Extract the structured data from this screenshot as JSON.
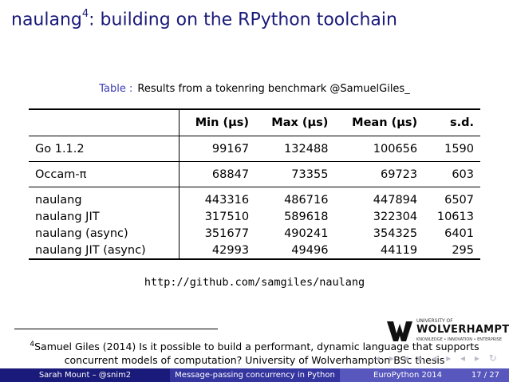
{
  "slide": {
    "title": "naulang",
    "title_sup": "4",
    "title_rest": ": building on the RPython toolchain"
  },
  "table": {
    "caption_label": "Table :",
    "caption_text": "Results from a tokenring benchmark @SamuelGiles_",
    "headers": [
      "Min (μs)",
      "Max (μs)",
      "Mean (μs)",
      "s.d."
    ],
    "rows": [
      {
        "name": "Go 1.1.2",
        "values": [
          "99167",
          "132488",
          "100656",
          "1590"
        ]
      },
      {
        "name": "Occam-π",
        "values": [
          "68847",
          "73355",
          "69723",
          "603"
        ]
      },
      {
        "name": "naulang",
        "values": [
          "443316",
          "486716",
          "447894",
          "6507"
        ]
      },
      {
        "name": "naulang JIT",
        "values": [
          "317510",
          "589618",
          "322304",
          "10613"
        ]
      },
      {
        "name": "naulang (async)",
        "values": [
          "351677",
          "490241",
          "354325",
          "6401"
        ]
      },
      {
        "name": "naulang JIT (async)",
        "values": [
          "42993",
          "49496",
          "44119",
          "295"
        ]
      }
    ]
  },
  "link": {
    "url": "http://github.com/samgiles/naulang"
  },
  "footnote": {
    "mark": "4",
    "text": "Samuel Giles (2014) Is it possible to build a performant, dynamic language that supports concurrent models of computation? University of Wolverhampton BSc thesis"
  },
  "logo": {
    "line1": "UNIVERSITY OF",
    "line2": "WOLVERHAMPTON",
    "line3": "KNOWLEDGE • INNOVATION • ENTERPRISE",
    "crest_color": "#111111"
  },
  "footer": {
    "author": "Sarah Mount – @snim2",
    "talk": "Message-passing concurrency in Python",
    "event": "EuroPython 2014",
    "page": "17 / 27",
    "colors": [
      "#1a1a7a",
      "#3535a0",
      "#5757bd"
    ]
  },
  "nav": {
    "glyphs": "◂ ▸ ◂ ▸ ◂ ▸ ◂ ▸ ↻"
  }
}
